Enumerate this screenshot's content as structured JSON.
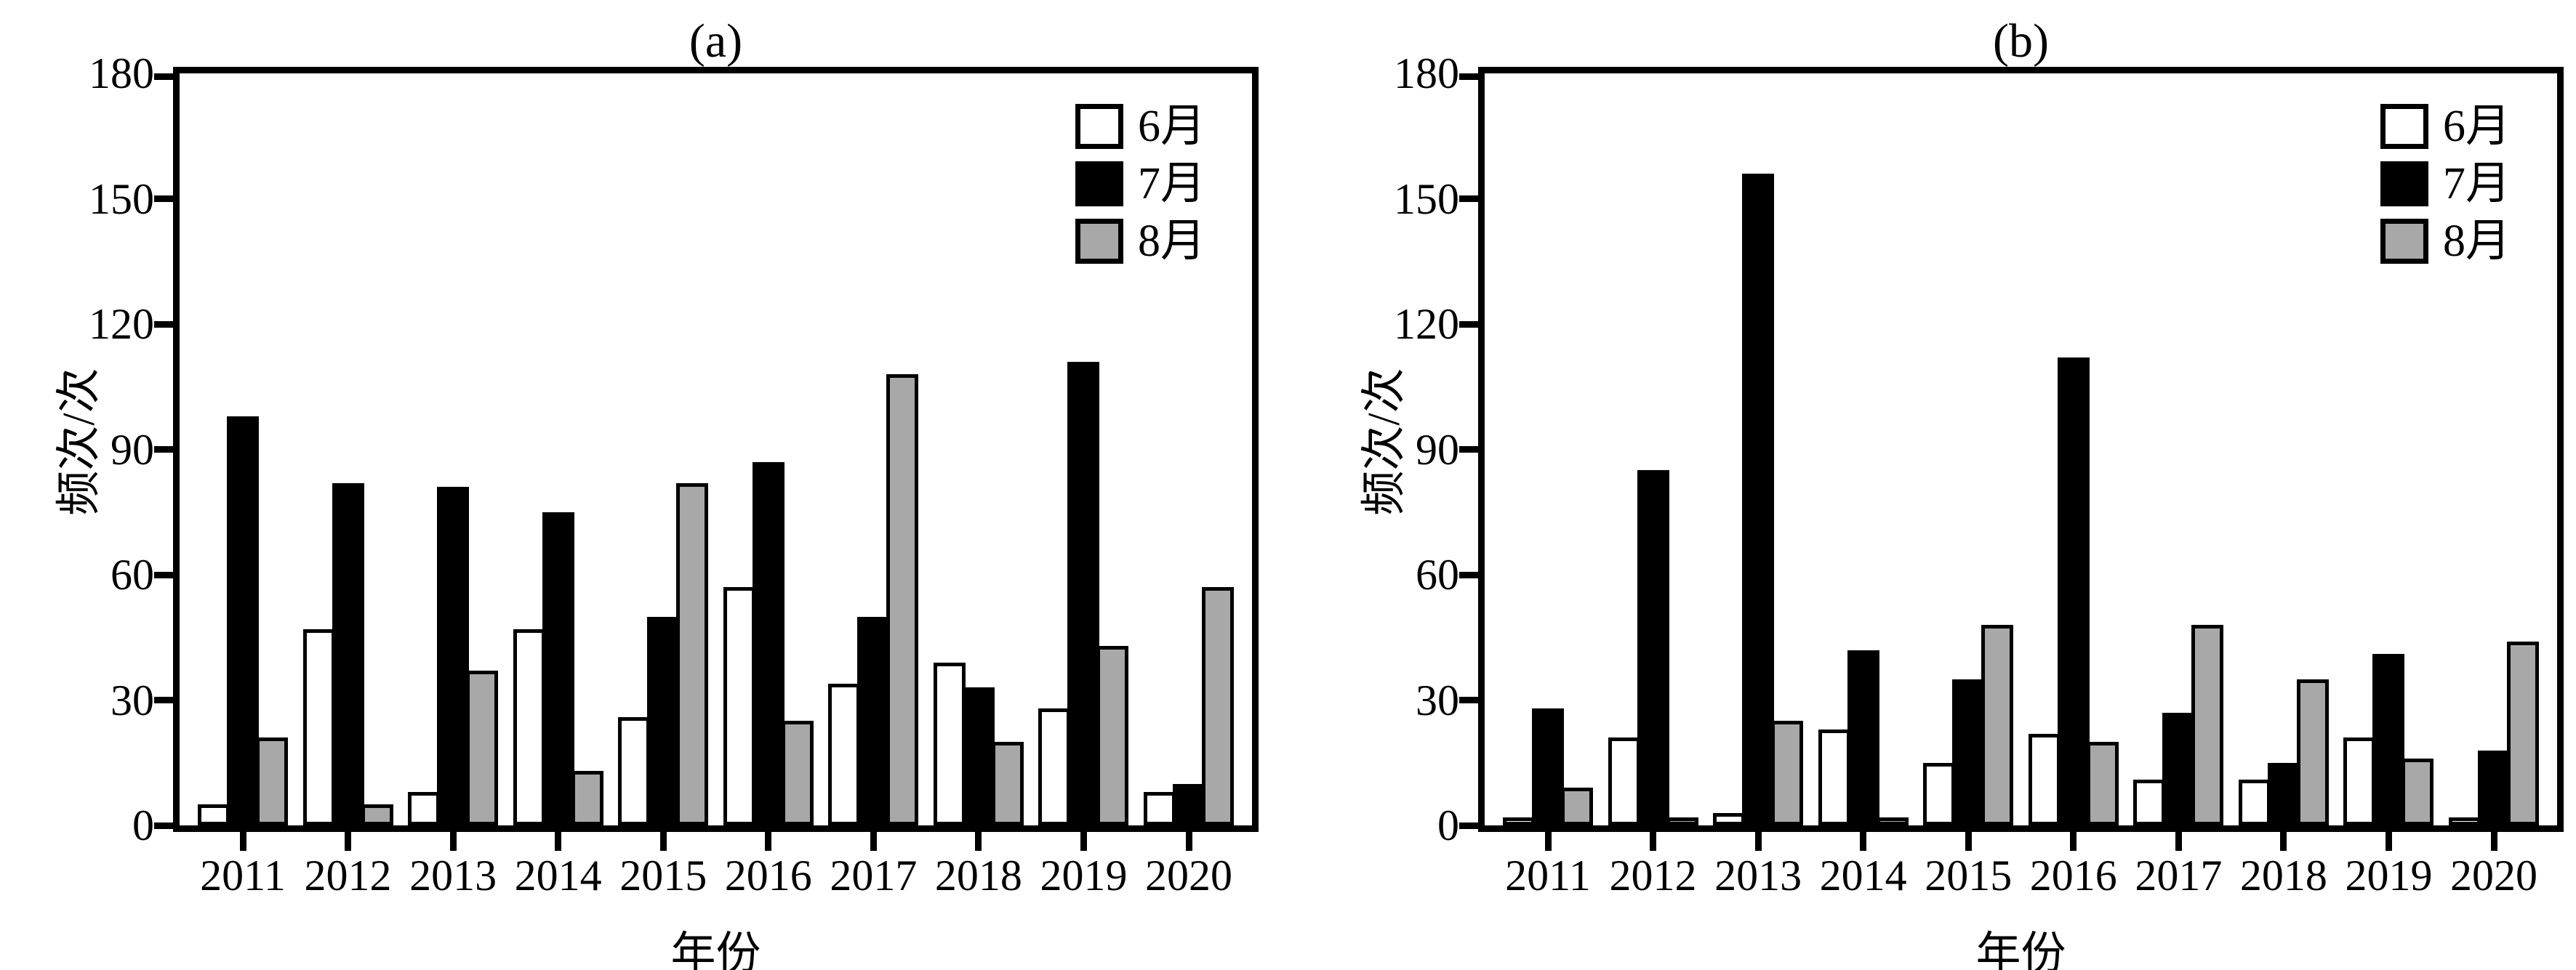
{
  "figure": {
    "background": "#ffffff",
    "series_colors": {
      "june": "#ffffff",
      "july": "#000000",
      "august": "#a8a8a8"
    },
    "axis_color": "#000000"
  },
  "chart_data": [
    {
      "type": "bar",
      "title": "(a)",
      "xlabel": "年份",
      "ylabel": "频次/次",
      "ylim": [
        0,
        180
      ],
      "yticks": [
        0,
        30,
        60,
        90,
        120,
        150,
        180
      ],
      "grid": false,
      "legend_position": "top-right",
      "categories": [
        "2011",
        "2012",
        "2013",
        "2014",
        "2015",
        "2016",
        "2017",
        "2018",
        "2019",
        "2020"
      ],
      "series": [
        {
          "name": "6月",
          "color": "#ffffff",
          "values": [
            5,
            47,
            8,
            47,
            26,
            57,
            34,
            39,
            28,
            8
          ]
        },
        {
          "name": "7月",
          "color": "#000000",
          "values": [
            98,
            82,
            81,
            75,
            50,
            87,
            50,
            33,
            111,
            10
          ]
        },
        {
          "name": "8月",
          "color": "#a8a8a8",
          "values": [
            21,
            5,
            37,
            13,
            82,
            25,
            108,
            20,
            43,
            57
          ]
        }
      ]
    },
    {
      "type": "bar",
      "title": "(b)",
      "xlabel": "年份",
      "ylabel": "频次/次",
      "ylim": [
        0,
        180
      ],
      "yticks": [
        0,
        30,
        60,
        90,
        120,
        150,
        180
      ],
      "grid": false,
      "legend_position": "top-right",
      "categories": [
        "2011",
        "2012",
        "2013",
        "2014",
        "2015",
        "2016",
        "2017",
        "2018",
        "2019",
        "2020"
      ],
      "series": [
        {
          "name": "6月",
          "color": "#ffffff",
          "values": [
            2,
            21,
            3,
            23,
            15,
            22,
            11,
            11,
            21,
            2
          ]
        },
        {
          "name": "7月",
          "color": "#000000",
          "values": [
            28,
            85,
            156,
            42,
            35,
            112,
            27,
            15,
            41,
            18
          ]
        },
        {
          "name": "8月",
          "color": "#a8a8a8",
          "values": [
            9,
            2,
            25,
            2,
            48,
            20,
            48,
            35,
            16,
            44
          ]
        }
      ]
    }
  ]
}
